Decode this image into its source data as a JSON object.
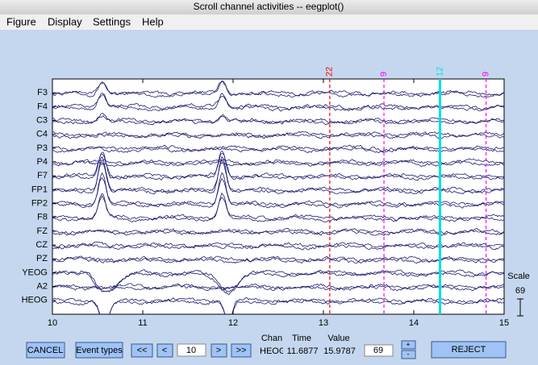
{
  "window_title": "Scroll channel activities -- eegplot()",
  "menu": [
    "Figure",
    "Display",
    "Settings",
    "Help"
  ],
  "chart_data": {
    "type": "eeg",
    "channels": [
      "F3",
      "F4",
      "C3",
      "C4",
      "P3",
      "P4",
      "F7",
      "FP1",
      "FP2",
      "F8",
      "FZ",
      "CZ",
      "PZ",
      "YEOG",
      "A2",
      "HEOG"
    ],
    "xlim": [
      10,
      15
    ],
    "xticks": [
      10,
      11,
      12,
      13,
      14,
      15
    ],
    "trace_color": "#1a1a6e",
    "events": [
      {
        "label": "22",
        "x": 13.07,
        "color": "#ff0000",
        "style": "dashed"
      },
      {
        "label": "9",
        "x": 13.67,
        "color": "#ff00ff",
        "style": "dashed"
      },
      {
        "label": "12",
        "x": 14.29,
        "color": "#00e0e0",
        "style": "solid"
      },
      {
        "label": "9",
        "x": 14.8,
        "color": "#ff00ff",
        "style": "dashed"
      }
    ]
  },
  "scale": {
    "label": "Scale",
    "value": 69
  },
  "controls": {
    "cancel": "CANCEL",
    "event_types": "Event types",
    "first": "<<",
    "prev": "<",
    "window_start": 10,
    "next": ">",
    "last": ">>",
    "chan_label": "Chan",
    "time_label": "Time",
    "value_label": "Value",
    "chan": "HEOG",
    "time": 11.6877,
    "value": 15.9787,
    "scale_input": 69,
    "plus": "+",
    "minus": "-",
    "reject": "REJECT"
  }
}
